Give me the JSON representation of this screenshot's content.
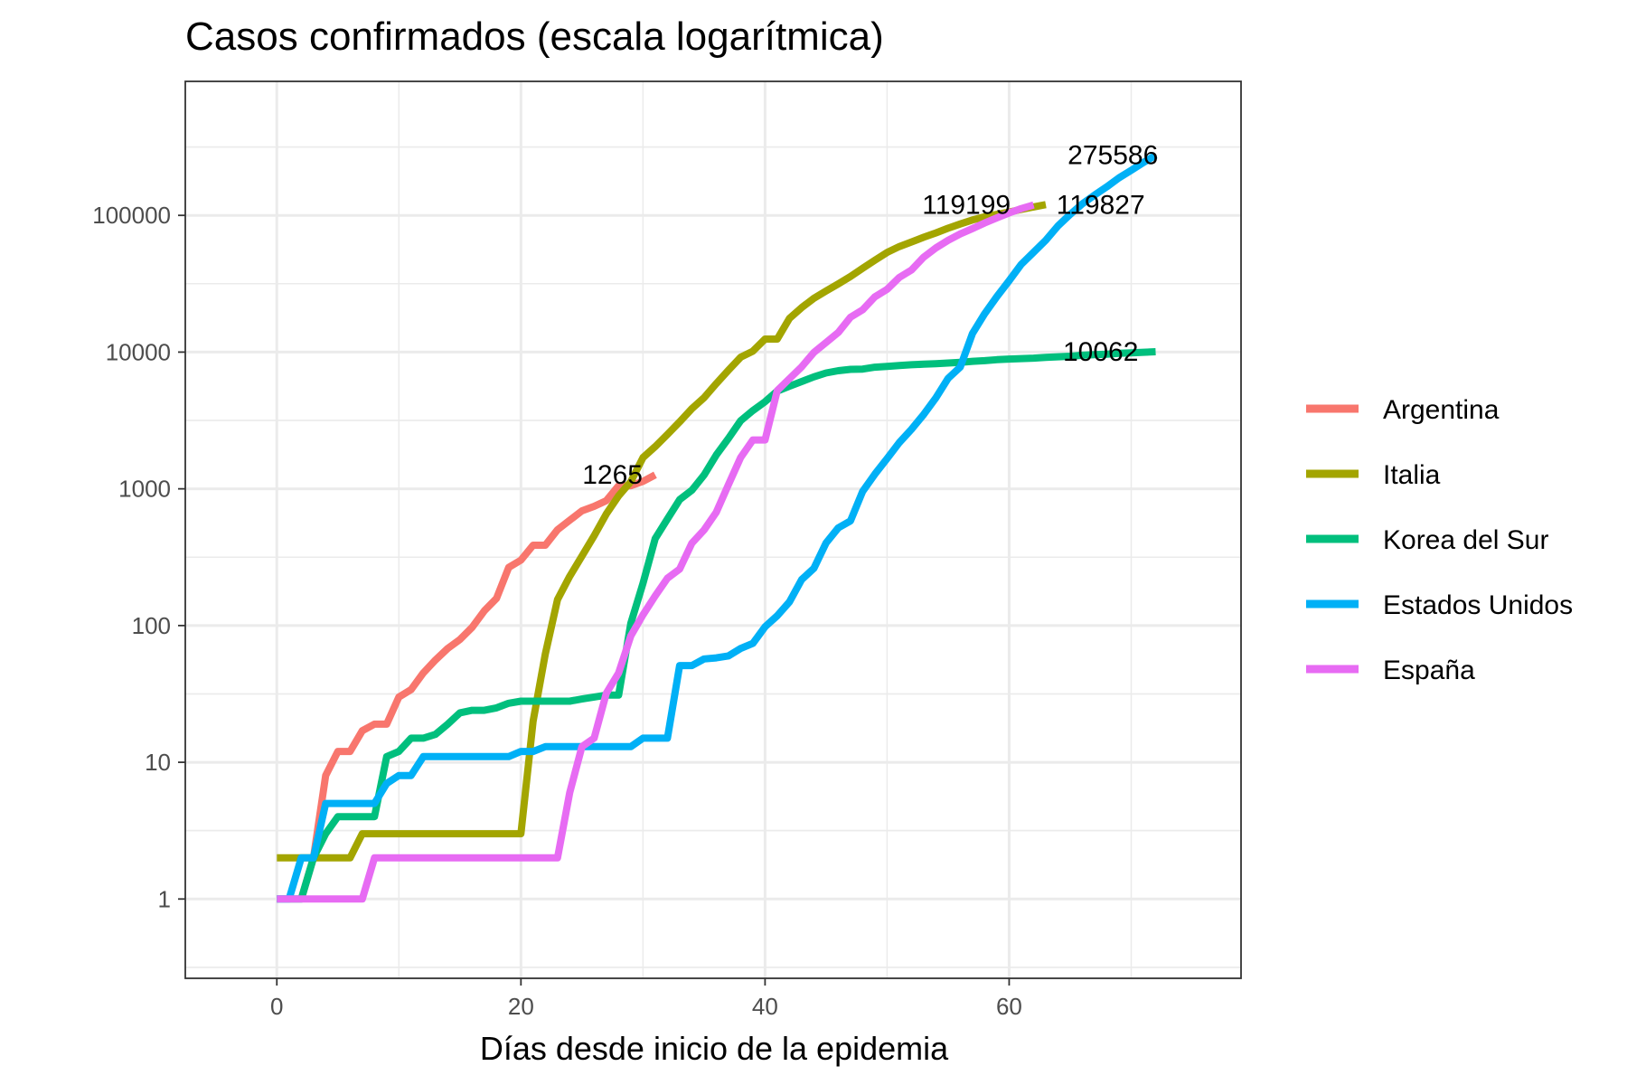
{
  "chart_data": {
    "type": "line",
    "title": "Casos confirmados (escala logarítmica)",
    "xlabel": "Días desde inicio de la epidemia",
    "ylabel": "",
    "x_scale": "linear",
    "y_scale": "log10",
    "xlim": [
      -7.5,
      79
    ],
    "ylim_log10": [
      -0.58,
      5.98
    ],
    "x_ticks": [
      0,
      20,
      40,
      60
    ],
    "x_tick_labels": [
      "0",
      "20",
      "40",
      "60"
    ],
    "y_ticks": [
      1,
      10,
      100,
      1000,
      10000,
      100000
    ],
    "y_tick_labels": [
      "1",
      "10",
      "100",
      "1000",
      "10000",
      "100000"
    ],
    "grid": true,
    "legend_position": "right",
    "series": [
      {
        "name": "Argentina",
        "color": "#F8766D",
        "points": [
          [
            2,
            1
          ],
          [
            3,
            2
          ],
          [
            4,
            8
          ],
          [
            5,
            12
          ],
          [
            6,
            12
          ],
          [
            7,
            17
          ],
          [
            8,
            19
          ],
          [
            9,
            19
          ],
          [
            10,
            30
          ],
          [
            11,
            34
          ],
          [
            12,
            45
          ],
          [
            13,
            56
          ],
          [
            14,
            68
          ],
          [
            15,
            79
          ],
          [
            16,
            97
          ],
          [
            17,
            128
          ],
          [
            18,
            158
          ],
          [
            19,
            266
          ],
          [
            20,
            301
          ],
          [
            21,
            387
          ],
          [
            22,
            387
          ],
          [
            23,
            502
          ],
          [
            24,
            589
          ],
          [
            25,
            690
          ],
          [
            26,
            745
          ],
          [
            27,
            820
          ],
          [
            28,
            1054
          ],
          [
            29,
            1054
          ],
          [
            30,
            1133
          ],
          [
            31,
            1265
          ]
        ]
      },
      {
        "name": "Italia",
        "color": "#A3A500",
        "points": [
          [
            0,
            2
          ],
          [
            1,
            2
          ],
          [
            2,
            2
          ],
          [
            3,
            2
          ],
          [
            4,
            2
          ],
          [
            5,
            2
          ],
          [
            6,
            2
          ],
          [
            7,
            3
          ],
          [
            8,
            3
          ],
          [
            9,
            3
          ],
          [
            10,
            3
          ],
          [
            11,
            3
          ],
          [
            12,
            3
          ],
          [
            13,
            3
          ],
          [
            14,
            3
          ],
          [
            15,
            3
          ],
          [
            16,
            3
          ],
          [
            17,
            3
          ],
          [
            18,
            3
          ],
          [
            19,
            3
          ],
          [
            20,
            3
          ],
          [
            21,
            20
          ],
          [
            22,
            62
          ],
          [
            23,
            155
          ],
          [
            24,
            229
          ],
          [
            25,
            322
          ],
          [
            26,
            453
          ],
          [
            27,
            655
          ],
          [
            28,
            888
          ],
          [
            29,
            1128
          ],
          [
            30,
            1694
          ],
          [
            31,
            2036
          ],
          [
            32,
            2502
          ],
          [
            33,
            3089
          ],
          [
            34,
            3858
          ],
          [
            35,
            4636
          ],
          [
            36,
            5883
          ],
          [
            37,
            7375
          ],
          [
            38,
            9172
          ],
          [
            39,
            10149
          ],
          [
            40,
            12462
          ],
          [
            41,
            12462
          ],
          [
            42,
            17660
          ],
          [
            43,
            21157
          ],
          [
            44,
            24747
          ],
          [
            45,
            27980
          ],
          [
            46,
            31506
          ],
          [
            47,
            35713
          ],
          [
            48,
            41035
          ],
          [
            49,
            47021
          ],
          [
            50,
            53578
          ],
          [
            51,
            59138
          ],
          [
            52,
            63927
          ],
          [
            53,
            69176
          ],
          [
            54,
            74386
          ],
          [
            55,
            80589
          ],
          [
            56,
            86498
          ],
          [
            57,
            92472
          ],
          [
            58,
            97689
          ],
          [
            59,
            101739
          ],
          [
            60,
            105792
          ],
          [
            61,
            110574
          ],
          [
            62,
            115242
          ],
          [
            63,
            119827
          ]
        ]
      },
      {
        "name": "Korea del Sur",
        "color": "#00BF7D",
        "points": [
          [
            0,
            1
          ],
          [
            1,
            1
          ],
          [
            2,
            1
          ],
          [
            3,
            2
          ],
          [
            4,
            3
          ],
          [
            5,
            4
          ],
          [
            6,
            4
          ],
          [
            7,
            4
          ],
          [
            8,
            4
          ],
          [
            9,
            11
          ],
          [
            10,
            12
          ],
          [
            11,
            15
          ],
          [
            12,
            15
          ],
          [
            13,
            16
          ],
          [
            14,
            19
          ],
          [
            15,
            23
          ],
          [
            16,
            24
          ],
          [
            17,
            24
          ],
          [
            18,
            25
          ],
          [
            19,
            27
          ],
          [
            20,
            28
          ],
          [
            21,
            28
          ],
          [
            22,
            28
          ],
          [
            23,
            28
          ],
          [
            24,
            28
          ],
          [
            25,
            29
          ],
          [
            26,
            30
          ],
          [
            27,
            31
          ],
          [
            28,
            31
          ],
          [
            29,
            104
          ],
          [
            30,
            204
          ],
          [
            31,
            433
          ],
          [
            32,
            602
          ],
          [
            33,
            833
          ],
          [
            34,
            977
          ],
          [
            35,
            1261
          ],
          [
            36,
            1766
          ],
          [
            37,
            2337
          ],
          [
            38,
            3150
          ],
          [
            39,
            3736
          ],
          [
            40,
            4335
          ],
          [
            41,
            5186
          ],
          [
            42,
            5621
          ],
          [
            43,
            6088
          ],
          [
            44,
            6593
          ],
          [
            45,
            7041
          ],
          [
            46,
            7314
          ],
          [
            47,
            7478
          ],
          [
            48,
            7513
          ],
          [
            49,
            7755
          ],
          [
            50,
            7869
          ],
          [
            51,
            7979
          ],
          [
            52,
            8086
          ],
          [
            53,
            8162
          ],
          [
            54,
            8236
          ],
          [
            55,
            8320
          ],
          [
            56,
            8413
          ],
          [
            57,
            8565
          ],
          [
            58,
            8652
          ],
          [
            59,
            8799
          ],
          [
            60,
            8897
          ],
          [
            61,
            8961
          ],
          [
            62,
            9037
          ],
          [
            63,
            9137
          ],
          [
            64,
            9241
          ],
          [
            65,
            9332
          ],
          [
            66,
            9478
          ],
          [
            67,
            9583
          ],
          [
            68,
            9661
          ],
          [
            69,
            9786
          ],
          [
            70,
            9887
          ],
          [
            71,
            9976
          ],
          [
            72,
            10062
          ]
        ]
      },
      {
        "name": "Estados Unidos",
        "color": "#00B0F6",
        "points": [
          [
            0,
            1
          ],
          [
            1,
            1
          ],
          [
            2,
            2
          ],
          [
            3,
            2
          ],
          [
            4,
            5
          ],
          [
            5,
            5
          ],
          [
            6,
            5
          ],
          [
            7,
            5
          ],
          [
            8,
            5
          ],
          [
            9,
            7
          ],
          [
            10,
            8
          ],
          [
            11,
            8
          ],
          [
            12,
            11
          ],
          [
            13,
            11
          ],
          [
            14,
            11
          ],
          [
            15,
            11
          ],
          [
            16,
            11
          ],
          [
            17,
            11
          ],
          [
            18,
            11
          ],
          [
            19,
            11
          ],
          [
            20,
            12
          ],
          [
            21,
            12
          ],
          [
            22,
            13
          ],
          [
            23,
            13
          ],
          [
            24,
            13
          ],
          [
            25,
            13
          ],
          [
            26,
            13
          ],
          [
            27,
            13
          ],
          [
            28,
            13
          ],
          [
            29,
            13
          ],
          [
            30,
            15
          ],
          [
            31,
            15
          ],
          [
            32,
            15
          ],
          [
            33,
            51
          ],
          [
            34,
            51
          ],
          [
            35,
            57
          ],
          [
            36,
            58
          ],
          [
            37,
            60
          ],
          [
            38,
            68
          ],
          [
            39,
            74
          ],
          [
            40,
            98
          ],
          [
            41,
            118
          ],
          [
            42,
            149
          ],
          [
            43,
            217
          ],
          [
            44,
            262
          ],
          [
            45,
            402
          ],
          [
            46,
            518
          ],
          [
            47,
            583
          ],
          [
            48,
            959
          ],
          [
            49,
            1281
          ],
          [
            50,
            1663
          ],
          [
            51,
            2179
          ],
          [
            52,
            2727
          ],
          [
            53,
            3499
          ],
          [
            54,
            4632
          ],
          [
            55,
            6421
          ],
          [
            56,
            7786
          ],
          [
            57,
            13680
          ],
          [
            58,
            19101
          ],
          [
            59,
            25493
          ],
          [
            60,
            33276
          ],
          [
            61,
            43847
          ],
          [
            62,
            53740
          ],
          [
            63,
            65778
          ],
          [
            64,
            83836
          ],
          [
            65,
            101657
          ],
          [
            66,
            121478
          ],
          [
            67,
            140886
          ],
          [
            68,
            161807
          ],
          [
            69,
            188172
          ],
          [
            70,
            213372
          ],
          [
            71,
            243453
          ],
          [
            72,
            275586
          ]
        ]
      },
      {
        "name": "España",
        "color": "#E76BF3",
        "points": [
          [
            0,
            1
          ],
          [
            1,
            1
          ],
          [
            2,
            1
          ],
          [
            3,
            1
          ],
          [
            4,
            1
          ],
          [
            5,
            1
          ],
          [
            6,
            1
          ],
          [
            7,
            1
          ],
          [
            8,
            2
          ],
          [
            9,
            2
          ],
          [
            10,
            2
          ],
          [
            11,
            2
          ],
          [
            12,
            2
          ],
          [
            13,
            2
          ],
          [
            14,
            2
          ],
          [
            15,
            2
          ],
          [
            16,
            2
          ],
          [
            17,
            2
          ],
          [
            18,
            2
          ],
          [
            19,
            2
          ],
          [
            20,
            2
          ],
          [
            21,
            2
          ],
          [
            22,
            2
          ],
          [
            23,
            2
          ],
          [
            24,
            6
          ],
          [
            25,
            13
          ],
          [
            26,
            15
          ],
          [
            27,
            32
          ],
          [
            28,
            45
          ],
          [
            29,
            84
          ],
          [
            30,
            120
          ],
          [
            31,
            165
          ],
          [
            32,
            222
          ],
          [
            33,
            259
          ],
          [
            34,
            400
          ],
          [
            35,
            500
          ],
          [
            36,
            673
          ],
          [
            37,
            1073
          ],
          [
            38,
            1695
          ],
          [
            39,
            2277
          ],
          [
            40,
            2277
          ],
          [
            41,
            5232
          ],
          [
            42,
            6391
          ],
          [
            43,
            7798
          ],
          [
            44,
            9942
          ],
          [
            45,
            11748
          ],
          [
            46,
            13910
          ],
          [
            47,
            17963
          ],
          [
            48,
            20410
          ],
          [
            49,
            25374
          ],
          [
            50,
            28768
          ],
          [
            51,
            35136
          ],
          [
            52,
            39885
          ],
          [
            53,
            49515
          ],
          [
            54,
            57786
          ],
          [
            55,
            65719
          ],
          [
            56,
            73235
          ],
          [
            57,
            80110
          ],
          [
            58,
            87956
          ],
          [
            59,
            95923
          ],
          [
            60,
            104118
          ],
          [
            61,
            112065
          ],
          [
            62,
            119199
          ]
        ]
      }
    ],
    "annotations": [
      {
        "text": "1265",
        "x": 27.5,
        "y": 1265
      },
      {
        "text": "119199",
        "x": 56.5,
        "y": 119199
      },
      {
        "text": "119827",
        "x": 67.5,
        "y": 119827
      },
      {
        "text": "275586",
        "x": 68.5,
        "y": 275586
      },
      {
        "text": "10062",
        "x": 67.5,
        "y": 10062
      }
    ]
  }
}
